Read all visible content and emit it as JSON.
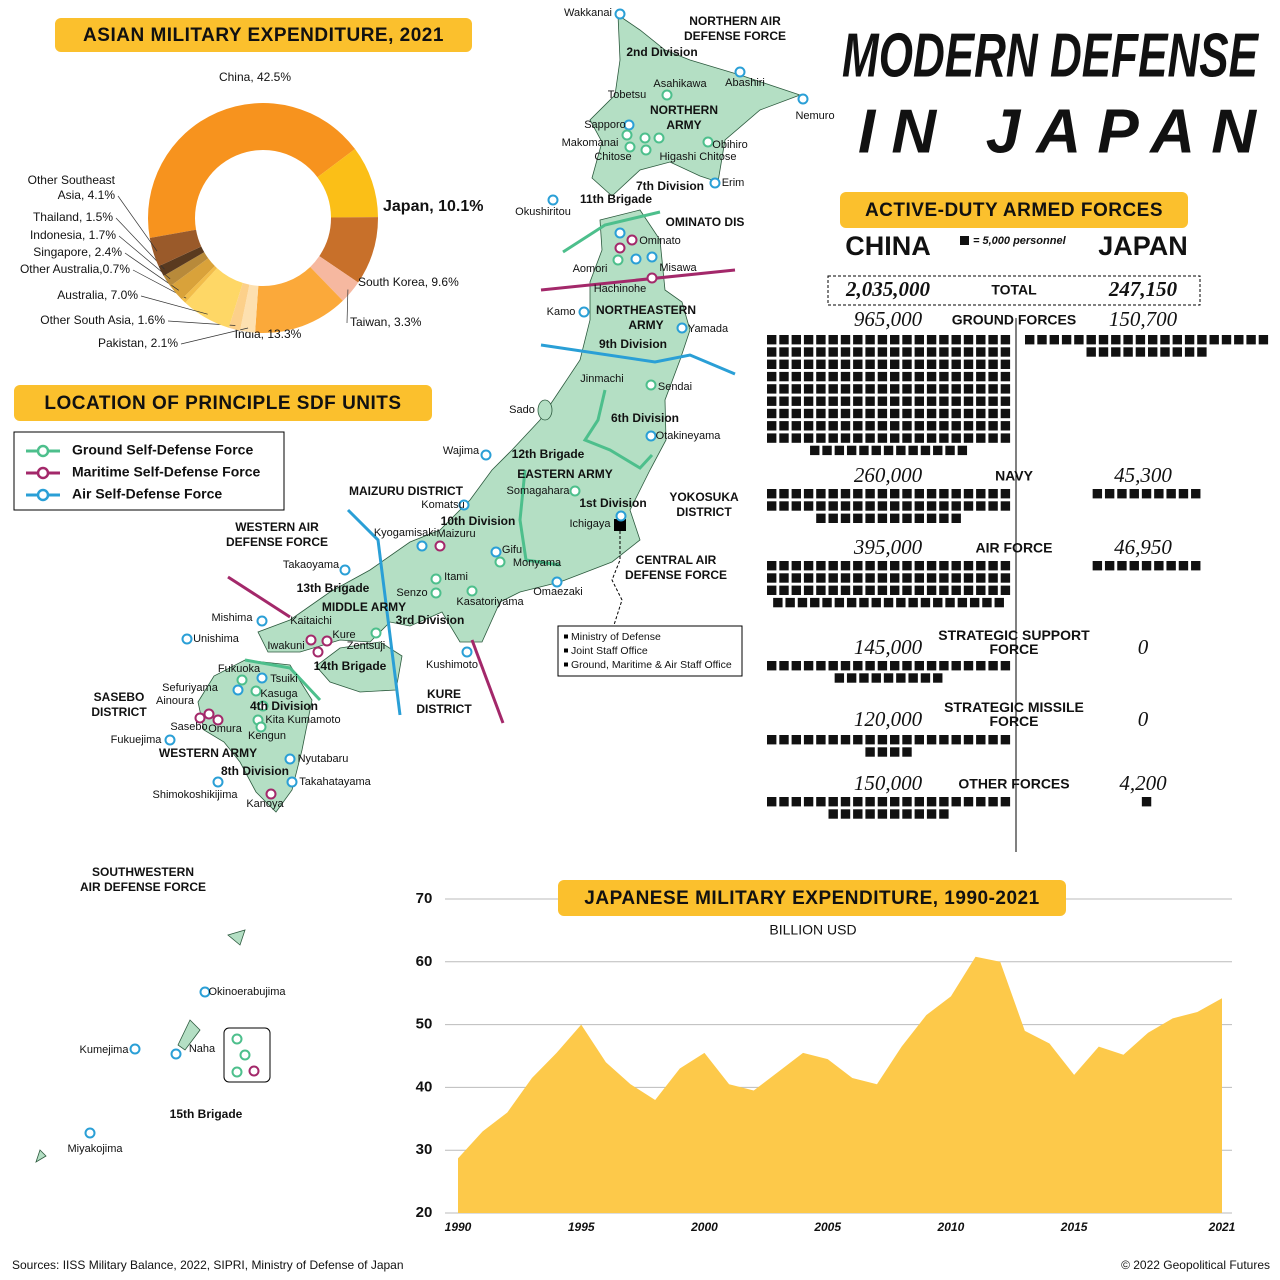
{
  "title": [
    "MODERN DEFENSE",
    "IN JAPAN"
  ],
  "chart_data": [
    {
      "type": "pie",
      "title": "ASIAN MILITARY EXPENDITURE, 2021",
      "values": [
        42.5,
        10.1,
        9.6,
        3.3,
        13.3,
        2.1,
        1.6,
        7.0,
        0.7,
        2.4,
        1.7,
        1.5,
        4.1
      ],
      "value_labels": [
        "China, 42.5%",
        "Japan, 10.1%",
        "South Korea, 9.6%",
        "Taiwan, 3.3%",
        "India, 13.3%",
        "Pakistan, 2.1%",
        "Other South Asia, 1.6%",
        "Australia, 7.0%",
        "Other Australia,0.7%",
        "Singapore, 2.4%",
        "Indonesia, 1.7%",
        "Thailand, 1.5%",
        "Other Southeast\nAsia, 4.1%"
      ],
      "colors": [
        "#f7931e",
        "#fbbf17",
        "#c8702a",
        "#f6b8a0",
        "#fba93a",
        "#fde0b0",
        "#fcd08a",
        "#fed766",
        "#f2bd4a",
        "#d9a23a",
        "#b88a3a",
        "#5a3a1f",
        "#9a5a2a"
      ]
    },
    {
      "type": "pictogram",
      "title": "ACTIVE-DUTY ARMED FORCES",
      "unit": 5000,
      "unit_label": "= 5,000 personnel",
      "square_color": "#111",
      "categories": [
        "GROUND FORCES",
        "NAVY",
        "AIR FORCE",
        "STRATEGIC SUPPORT\nFORCE",
        "STRATEGIC MISSILE\nFORCE",
        "OTHER FORCES"
      ],
      "total_label": "TOTAL",
      "totals": [
        2035000,
        247150
      ],
      "total_labels": [
        "2,035,000",
        "247,150"
      ],
      "series": [
        {
          "name": "CHINA",
          "color": "#f07a45",
          "values": [
            965000,
            260000,
            395000,
            145000,
            120000,
            150000
          ],
          "value_labels": [
            "965,000",
            "260,000",
            "395,000",
            "145,000",
            "120,000",
            "150,000"
          ]
        },
        {
          "name": "JAPAN",
          "color": "#fbc02d",
          "values": [
            150700,
            45300,
            46950,
            0,
            0,
            4200
          ],
          "value_labels": [
            "150,700",
            "45,300",
            "46,950",
            "0",
            "0",
            "4,200"
          ]
        }
      ]
    },
    {
      "type": "area",
      "title": "JAPANESE MILITARY EXPENDITURE, 1990-2021",
      "subtitle": "BILLION USD",
      "x": [
        1990,
        1991,
        1992,
        1993,
        1994,
        1995,
        1996,
        1997,
        1998,
        1999,
        2000,
        2001,
        2002,
        2003,
        2004,
        2005,
        2006,
        2007,
        2008,
        2009,
        2010,
        2011,
        2012,
        2013,
        2014,
        2015,
        2016,
        2017,
        2018,
        2019,
        2020,
        2021
      ],
      "values": [
        28.7,
        33,
        36,
        41.5,
        45.5,
        50,
        44,
        40.5,
        38,
        43,
        45.5,
        40.5,
        39.5,
        42.5,
        45.5,
        44.5,
        41.5,
        40.5,
        46.5,
        51.5,
        54.5,
        60.8,
        60,
        49,
        47,
        42,
        46.5,
        45.2,
        48.7,
        51,
        52,
        54.2
      ],
      "color": "#fdc94a",
      "xlim": [
        1990,
        2021
      ],
      "xticks": [
        1990,
        1995,
        2000,
        2005,
        2010,
        2015,
        2021
      ],
      "ylim": [
        20,
        70
      ],
      "yticks": [
        20,
        30,
        40,
        50,
        60,
        70
      ],
      "grid": true
    }
  ],
  "map": {
    "title": "LOCATION OF PRINCIPLE SDF UNITS",
    "legend": [
      {
        "name": "Ground Self-Defense Force",
        "color": "#4dbf8c"
      },
      {
        "name": "Maritime Self-Defense Force",
        "color": "#a3286a"
      },
      {
        "name": "Air Self-Defense Force",
        "color": "#2a9fd6"
      }
    ],
    "places": [
      "Wakkanai",
      "Abashiri",
      "Nemuro",
      "Asahikawa",
      "Tobetsu",
      "Sapporo",
      "Makomanai",
      "Chitose",
      "Obihiro",
      "Higashi Chitose",
      "Erim",
      "Okushiritou",
      "Ominato",
      "Aomori",
      "Misawa",
      "Hachinohe",
      "Kamo",
      "Yamada",
      "Jinmachi",
      "Sendai",
      "Sado",
      "Otakineyama",
      "Wajima",
      "Somagahara",
      "Komatsu",
      "Ichigaya",
      "Kyogamisaki",
      "Maizuru",
      "Gifu",
      "Monyama",
      "Takaoyama",
      "Itami",
      "Senzo",
      "Omaezaki",
      "Kasatoriyama",
      "Mishima",
      "Kaitaichi",
      "Kure",
      "Zentsuji",
      "Unishima",
      "Iwakuni",
      "Kushimoto",
      "Fukuoka",
      "Sefuriyama",
      "Tsuiki",
      "Ainoura",
      "Kasuga",
      "Sasebo",
      "Omura",
      "Kita Kumamoto",
      "Kengun",
      "Fukuejima",
      "Nyutabaru",
      "Takahatayama",
      "Shimokoshikijima",
      "Kanoya",
      "Okinoerabujima",
      "Kumejima",
      "Naha",
      "Miyakojima"
    ],
    "units": [
      "NORTHERN AIR\nDEFENSE FORCE",
      "2nd Division",
      "NORTHERN\nARMY",
      "7th Division",
      "11th Brigade",
      "OMINATO DIS",
      "NORTHEASTERN\nARMY",
      "9th Division",
      "6th Division",
      "12th Brigade",
      "EASTERN ARMY",
      "1st Division",
      "YOKOSUKA\nDISTRICT",
      "MAIZURU DISTRICT",
      "10th Division",
      "WESTERN AIR\nDEFENSE FORCE",
      "CENTRAL AIR\nDEFENSE FORCE",
      "13th Brigade",
      "MIDDLE ARMY",
      "3rd Division",
      "14th Brigade",
      "SASEBO\nDISTRICT",
      "KURE\nDISTRICT",
      "4th Division",
      "WESTERN ARMY",
      "8th Division",
      "SOUTHWESTERN\nAIR DEFENSE FORCE",
      "15th Brigade"
    ],
    "hq_items": [
      "Ministry of Defense",
      "Joint Staff Office",
      "Ground, Maritime & Air Staff Office"
    ]
  },
  "sources": "Sources: IISS Military Balance, 2022, SIPRI, Ministry of Defense of Japan",
  "copyright": "© 2022 Geopolitical Futures"
}
